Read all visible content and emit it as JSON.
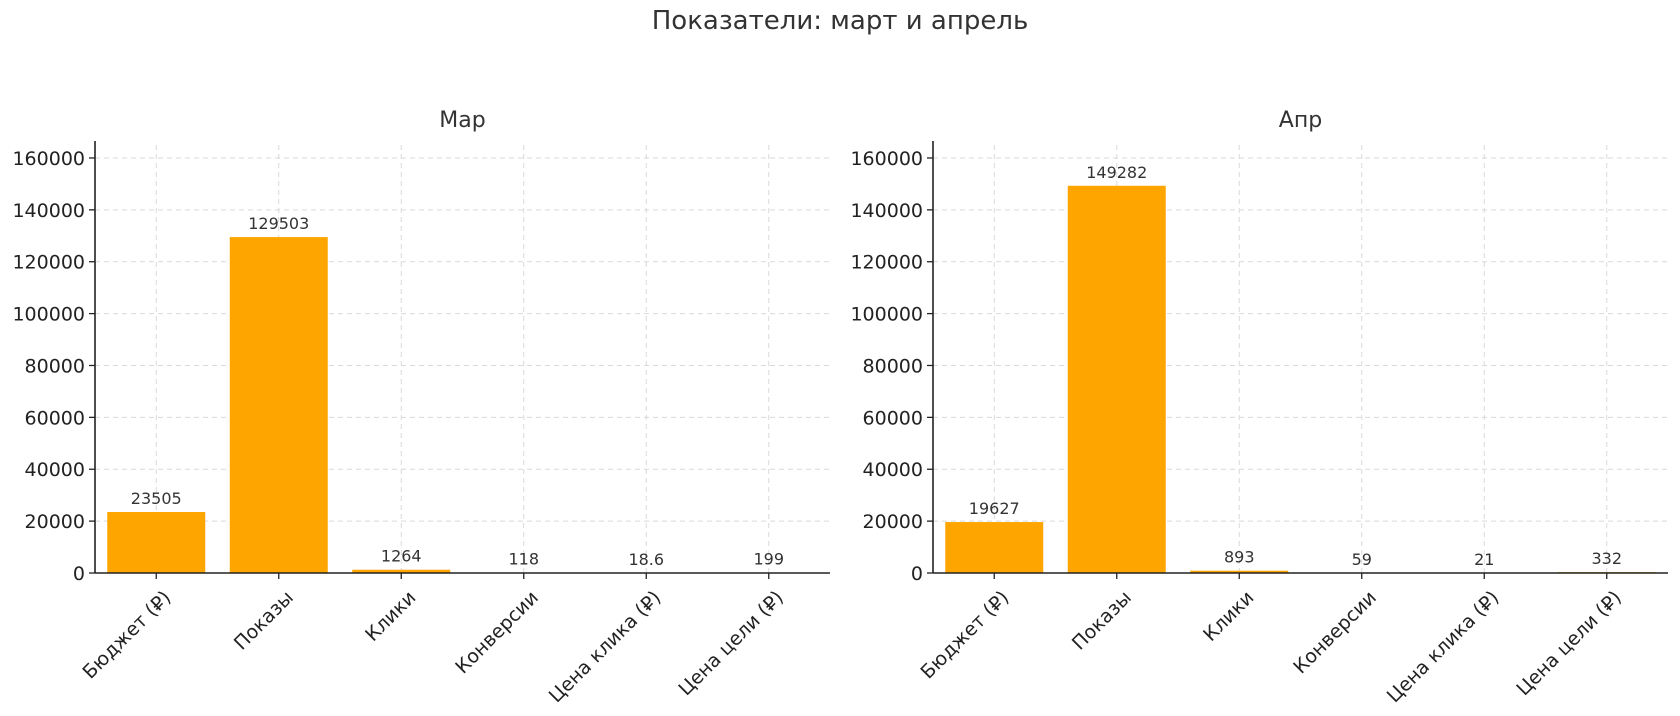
{
  "title": "Показатели: март и апрель",
  "chart_data": [
    {
      "type": "bar",
      "title": "Мар",
      "categories": [
        "Бюджет (₽)",
        "Показы",
        "Клики",
        "Конверсии",
        "Цена клика (₽)",
        "Цена цели (₽)"
      ],
      "values": [
        23505,
        129503,
        1264,
        118,
        18.6,
        199
      ],
      "data_labels": [
        "23505",
        "129503",
        "1264",
        "118",
        "18.6",
        "199"
      ],
      "ylim": [
        0,
        165000
      ],
      "yticks": [
        0,
        20000,
        40000,
        60000,
        80000,
        100000,
        120000,
        140000,
        160000
      ],
      "grid": true,
      "bar_color": "#FFA500"
    },
    {
      "type": "bar",
      "title": "Апр",
      "categories": [
        "Бюджет (₽)",
        "Показы",
        "Клики",
        "Конверсии",
        "Цена клика (₽)",
        "Цена цели (₽)"
      ],
      "values": [
        19627,
        149282,
        893,
        59,
        21,
        332
      ],
      "data_labels": [
        "19627",
        "149282",
        "893",
        "59",
        "21",
        "332"
      ],
      "ylim": [
        0,
        165000
      ],
      "yticks": [
        0,
        20000,
        40000,
        60000,
        80000,
        100000,
        120000,
        140000,
        160000
      ],
      "grid": true,
      "bar_color": "#FFA500"
    }
  ]
}
